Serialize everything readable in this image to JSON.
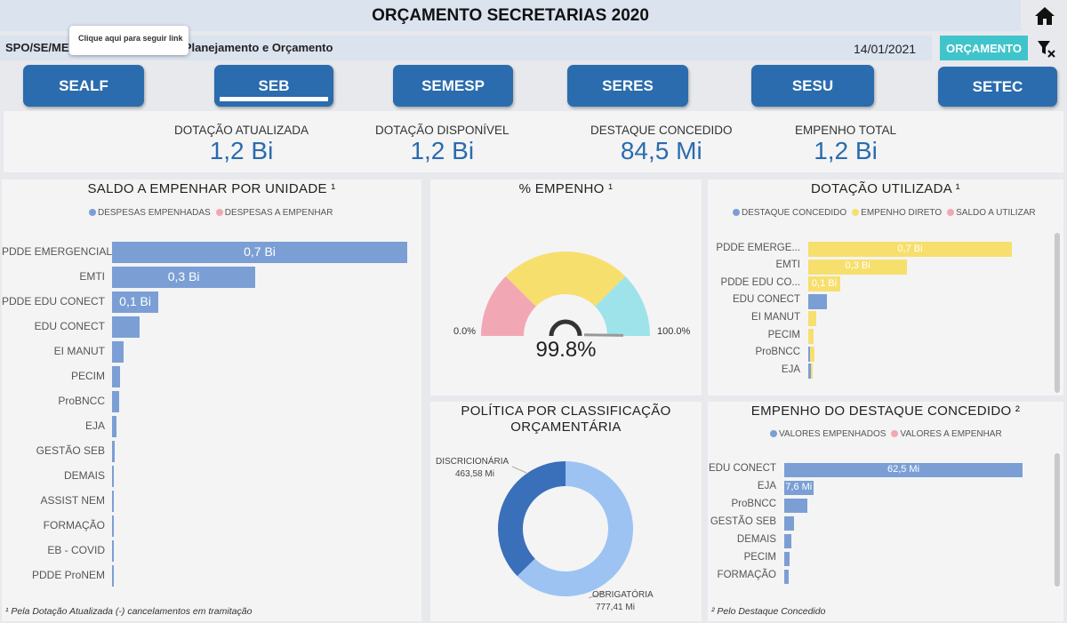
{
  "header": {
    "title": "ORÇAMENTO SECRETARIAS 2020"
  },
  "subheader": {
    "org": "SPO/SE/MEC - Subsecretaria de Planejamento e Orçamento",
    "tooltip": "Clique aqui para seguir link",
    "date": "14/01/2021",
    "orcamento_button": "ORÇAMENTO"
  },
  "icons": {
    "home": "home-icon",
    "clear_filters": "clear-filter-icon"
  },
  "nav": [
    {
      "label": "SEALF",
      "selected": false
    },
    {
      "label": "SEB",
      "selected": true
    },
    {
      "label": "SEMESP",
      "selected": false
    },
    {
      "label": "SERES",
      "selected": false
    },
    {
      "label": "SESU",
      "selected": false
    },
    {
      "label": "SETEC",
      "selected": false
    }
  ],
  "kpis": [
    {
      "label": "DOTAÇÃO ATUALIZADA",
      "value": "1,2 Bi"
    },
    {
      "label": "DOTAÇÃO DISPONÍVEL",
      "value": "1,2 Bi"
    },
    {
      "label": "DESTAQUE CONCEDIDO",
      "value": "84,5 Mi"
    },
    {
      "label": "EMPENHO TOTAL",
      "value": "1,2 Bi"
    }
  ],
  "colors": {
    "blue": "#7b9fd4",
    "pink": "#f2a7b5",
    "yellow": "#f7df6e",
    "cyan": "#9ee3ea",
    "dark_blue": "#3a6fba",
    "light_blue": "#9cc3f2",
    "brand": "#2a6cad",
    "teal": "#40c4cc"
  },
  "saldo": {
    "title": "SALDO A EMPENHAR POR UNIDADE ¹",
    "legend": [
      "DESPESAS EMPENHADAS",
      "DESPESAS A EMPENHAR"
    ],
    "footnote": "¹ Pela Dotação Atualizada (-) cancelamentos em tramitação"
  },
  "empenho": {
    "title": "% EMPENHO ¹",
    "min_label": "0.0%",
    "max_label": "100.0%",
    "value_label": "99.8%"
  },
  "dotacao": {
    "title": "DOTAÇÃO UTILIZADA ¹",
    "legend": [
      "DESTAQUE CONCEDIDO",
      "EMPENHO DIRETO",
      "SALDO A UTILIZAR"
    ]
  },
  "politica": {
    "title_line1": "POLÍTICA POR CLASSIFICAÇÃO",
    "title_line2": "ORÇAMENTÁRIA",
    "disc_label": "DISCRICIONÁRIA",
    "disc_value": "463,58 Mi",
    "obr_label": "OBRIGATÓRIA",
    "obr_value": "777,41 Mi"
  },
  "destaque": {
    "title": "EMPENHO DO DESTAQUE CONCEDIDO ²",
    "legend": [
      "VALORES EMPENHADOS",
      "VALORES A EMPENHAR"
    ],
    "footnote": "² Pelo Destaque Concedido"
  },
  "chart_data": [
    {
      "type": "bar",
      "orientation": "horizontal",
      "title": "SALDO A EMPENHAR POR UNIDADE ¹",
      "categories": [
        "PDDE EMERGENCIAL",
        "EMTI",
        "PDDE EDU CONECT",
        "EDU CONECT",
        "EI MANUT",
        "PECIM",
        "ProBNCC",
        "EJA",
        "GESTÃO SEB",
        "DEMAIS",
        "ASSIST NEM",
        "FORMAÇÃO",
        "EB - COVID",
        "PDDE ProNEM"
      ],
      "series": [
        {
          "name": "DESPESAS EMPENHADAS",
          "values": [
            0.7,
            0.34,
            0.11,
            0.065,
            0.028,
            0.018,
            0.016,
            0.01,
            0.007,
            0.004,
            0.003,
            0.003,
            0.002,
            0.001
          ]
        },
        {
          "name": "DESPESAS A EMPENHAR",
          "values": [
            0,
            0,
            0,
            0,
            0,
            0,
            0,
            0,
            0,
            0,
            0,
            0,
            0,
            0
          ]
        }
      ],
      "data_labels": [
        "0,7 Bi",
        "0,3 Bi",
        "0,1 Bi",
        "",
        "",
        "",
        "",
        "",
        "",
        "",
        "",
        "",
        "",
        ""
      ],
      "unit": "Bi",
      "xlim": [
        0,
        0.7
      ]
    },
    {
      "type": "gauge",
      "title": "% EMPENHO ¹",
      "value": 99.8,
      "min": 0,
      "max": 100,
      "bands": [
        {
          "from": 0,
          "to": 25,
          "color": "#f2a7b5"
        },
        {
          "from": 25,
          "to": 75,
          "color": "#f7df6e"
        },
        {
          "from": 75,
          "to": 100,
          "color": "#9ee3ea"
        }
      ]
    },
    {
      "type": "bar",
      "orientation": "horizontal",
      "stacked": true,
      "title": "DOTAÇÃO UTILIZADA ¹",
      "categories": [
        "PDDE EMERGE...",
        "EMTI",
        "PDDE EDU CO...",
        "EDU CONECT",
        "EI MANUT",
        "PECIM",
        "ProBNCC",
        "EJA"
      ],
      "series": [
        {
          "name": "DESTAQUE CONCEDIDO",
          "values": [
            0,
            0,
            0,
            0.065,
            0,
            0,
            0.002,
            0.008
          ]
        },
        {
          "name": "EMPENHO DIRETO",
          "values": [
            0.7,
            0.34,
            0.11,
            0,
            0.028,
            0.018,
            0.016,
            0.002
          ]
        },
        {
          "name": "SALDO A UTILIZAR",
          "values": [
            0,
            0,
            0,
            0,
            0,
            0,
            0,
            0
          ]
        }
      ],
      "data_labels": [
        "0,7 Bi",
        "0,3 Bi",
        "0,1 Bi",
        "",
        "",
        "",
        "",
        ""
      ],
      "unit": "Bi",
      "xlim": [
        0,
        0.7
      ]
    },
    {
      "type": "pie",
      "donut": true,
      "title": "POLÍTICA POR CLASSIFICAÇÃO ORÇAMENTÁRIA",
      "slices": [
        {
          "label": "DISCRICIONÁRIA",
          "value": 463.58,
          "display": "463,58 Mi",
          "color": "#3a6fba"
        },
        {
          "label": "OBRIGATÓRIA",
          "value": 777.41,
          "display": "777,41 Mi",
          "color": "#9cc3f2"
        }
      ],
      "unit": "Mi"
    },
    {
      "type": "bar",
      "orientation": "horizontal",
      "title": "EMPENHO DO DESTAQUE CONCEDIDO ²",
      "categories": [
        "EDU CONECT",
        "EJA",
        "ProBNCC",
        "GESTÃO SEB",
        "DEMAIS",
        "PECIM",
        "FORMAÇÃO"
      ],
      "series": [
        {
          "name": "VALORES EMPENHADOS",
          "values": [
            62.5,
            7.6,
            6.0,
            2.6,
            1.8,
            1.5,
            1.2
          ]
        },
        {
          "name": "VALORES A EMPENHAR",
          "values": [
            0,
            0,
            0,
            0,
            0,
            0,
            0
          ]
        }
      ],
      "data_labels": [
        "62,5 Mi",
        "7,6 Mi",
        "",
        "",
        "",
        "",
        ""
      ],
      "unit": "Mi",
      "xlim": [
        0,
        62.5
      ]
    }
  ]
}
